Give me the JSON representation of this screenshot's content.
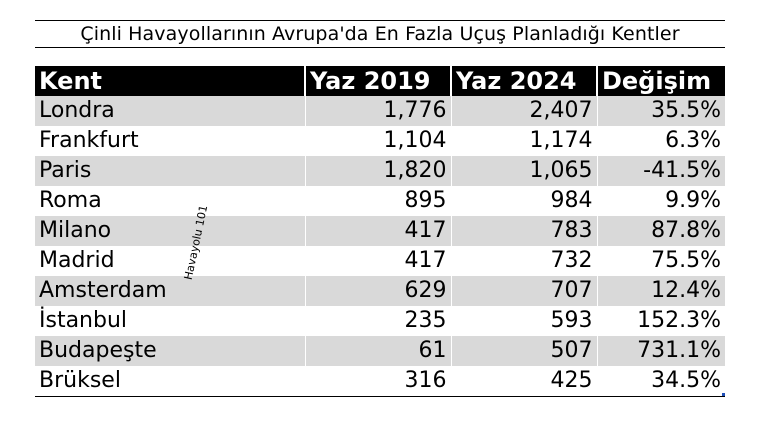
{
  "title": "Çinli Havayollarının Avrupa'da En Fazla Uçuş Planladığı Kentler",
  "watermark": "Havayolu 101",
  "headers": {
    "city": "Kent",
    "summer_2019": "Yaz 2019",
    "summer_2024": "Yaz 2024",
    "change": "Değişim"
  },
  "rows": [
    {
      "city": "Londra",
      "y2019": "1,776",
      "y2024": "2,407",
      "change": "35.5%"
    },
    {
      "city": "Frankfurt",
      "y2019": "1,104",
      "y2024": "1,174",
      "change": "6.3%"
    },
    {
      "city": "Paris",
      "y2019": "1,820",
      "y2024": "1,065",
      "change": "-41.5%"
    },
    {
      "city": "Roma",
      "y2019": "895",
      "y2024": "984",
      "change": "9.9%"
    },
    {
      "city": "Milano",
      "y2019": "417",
      "y2024": "783",
      "change": "87.8%"
    },
    {
      "city": "Madrid",
      "y2019": "417",
      "y2024": "732",
      "change": "75.5%"
    },
    {
      "city": "Amsterdam",
      "y2019": "629",
      "y2024": "707",
      "change": "12.4%"
    },
    {
      "city": "İstanbul",
      "y2019": "235",
      "y2024": "593",
      "change": "152.3%"
    },
    {
      "city": "Budapeşte",
      "y2019": "61",
      "y2024": "507",
      "change": "731.1%"
    },
    {
      "city": "Brüksel",
      "y2019": "316",
      "y2024": "425",
      "change": "34.5%"
    }
  ],
  "colors": {
    "header_bg": "#000000",
    "header_text": "#ffffff",
    "row_shade": "#d9d9d9",
    "row_plain": "#ffffff"
  }
}
